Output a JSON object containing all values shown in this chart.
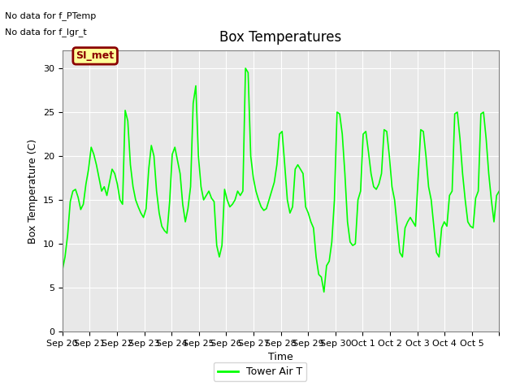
{
  "title": "Box Temperatures",
  "ylabel": "Box Temperature (C)",
  "xlabel": "Time",
  "no_data_text1": "No data for f_PTemp",
  "no_data_text2": "No data for f_lgr_t",
  "legend_label": "Tower Air T",
  "legend_patch_label": "SI_met",
  "ylim": [
    0,
    32
  ],
  "yticks": [
    0,
    5,
    10,
    15,
    20,
    25,
    30
  ],
  "line_color": "#00FF00",
  "bg_color": "#E8E8E8",
  "fig_bg": "#FFFFFF",
  "patch_color": "#FFFF99",
  "patch_border": "#8B0000",
  "patch_text_color": "#8B0000",
  "x_labels": [
    "Sep 20",
    "Sep 21",
    "Sep 22",
    "Sep 23",
    "Sep 24",
    "Sep 25",
    "Sep 26",
    "Sep 27",
    "Sep 28",
    "Sep 29",
    "Sep 30",
    "Oct 1",
    "Oct 2",
    "Oct 3",
    "Oct 4",
    "Oct 5"
  ],
  "temperatures": [
    7.0,
    8.5,
    11.0,
    14.8,
    16.0,
    16.2,
    15.3,
    13.9,
    14.5,
    16.8,
    18.5,
    21.0,
    20.2,
    19.0,
    17.5,
    16.0,
    16.5,
    15.5,
    17.0,
    18.5,
    18.0,
    16.8,
    15.0,
    14.5,
    25.2,
    24.0,
    19.0,
    16.5,
    15.0,
    14.2,
    13.5,
    13.0,
    14.0,
    18.5,
    21.2,
    20.0,
    16.0,
    13.5,
    12.0,
    11.5,
    11.2,
    14.8,
    20.2,
    21.0,
    19.5,
    18.0,
    14.5,
    12.5,
    14.0,
    16.5,
    26.0,
    28.0,
    20.0,
    16.5,
    15.0,
    15.5,
    16.0,
    15.2,
    14.8,
    9.8,
    8.5,
    9.8,
    16.2,
    15.0,
    14.2,
    14.5,
    15.0,
    16.0,
    15.5,
    16.0,
    30.0,
    29.5,
    20.0,
    17.5,
    16.0,
    15.0,
    14.2,
    13.8,
    14.0,
    15.0,
    16.0,
    17.0,
    19.0,
    22.5,
    22.8,
    19.0,
    15.0,
    13.5,
    14.2,
    18.5,
    19.0,
    18.5,
    18.0,
    14.2,
    13.5,
    12.5,
    11.8,
    8.5,
    6.5,
    6.2,
    4.5,
    7.5,
    8.0,
    10.2,
    15.0,
    25.0,
    24.8,
    22.5,
    18.0,
    12.5,
    10.2,
    9.8,
    10.0,
    15.0,
    16.0,
    22.5,
    22.8,
    20.5,
    18.0,
    16.5,
    16.2,
    16.8,
    18.0,
    23.0,
    22.8,
    20.0,
    16.5,
    15.0,
    12.0,
    9.0,
    8.5,
    11.8,
    12.5,
    13.0,
    12.5,
    12.0,
    17.5,
    23.0,
    22.8,
    20.0,
    16.5,
    15.0,
    12.0,
    9.0,
    8.5,
    11.8,
    12.5,
    12.0,
    15.5,
    16.0,
    24.8,
    25.0,
    22.0,
    18.0,
    15.0,
    12.5,
    12.0,
    11.8,
    15.2,
    16.0,
    24.8,
    25.0,
    22.0,
    18.0,
    15.0,
    12.5,
    15.5,
    16.0
  ]
}
